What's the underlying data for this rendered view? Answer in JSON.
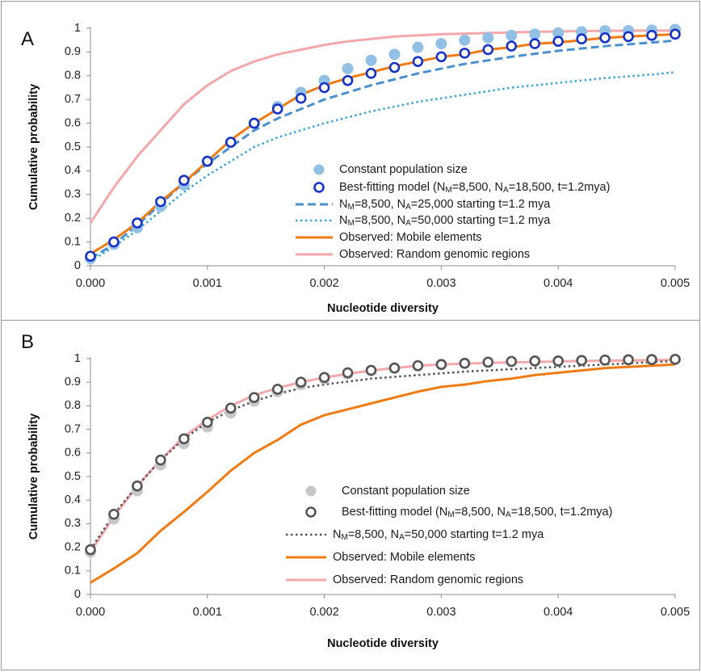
{
  "chart_data": [
    {
      "type": "scatter",
      "panel_label": "A",
      "xlabel": "Nucleotide diversity",
      "ylabel": "Cumulative probability",
      "xlim": [
        0,
        0.005
      ],
      "ylim": [
        0,
        1
      ],
      "x_ticks": [
        "0.000",
        "0.001",
        "0.002",
        "0.003",
        "0.004",
        "0.005"
      ],
      "y_ticks": [
        "0",
        "0.1",
        "0.2",
        "0.3",
        "0.4",
        "0.5",
        "0.6",
        "0.7",
        "0.8",
        "0.9",
        "1"
      ],
      "grid": false,
      "legend_position": "bottom-right",
      "series": [
        {
          "name": "Constant population size",
          "style": "filled-dot",
          "color": "#92bfe4",
          "x": [
            0,
            0.0002,
            0.0004,
            0.0006,
            0.0008,
            0.001,
            0.0012,
            0.0014,
            0.0016,
            0.0018,
            0.002,
            0.0022,
            0.0024,
            0.0026,
            0.0028,
            0.003,
            0.0032,
            0.0034,
            0.0036,
            0.0038,
            0.004,
            0.0042,
            0.0044,
            0.0046,
            0.0048,
            0.005
          ],
          "y": [
            0.03,
            0.09,
            0.16,
            0.25,
            0.34,
            0.44,
            0.52,
            0.6,
            0.67,
            0.73,
            0.78,
            0.83,
            0.865,
            0.89,
            0.92,
            0.935,
            0.95,
            0.96,
            0.97,
            0.975,
            0.98,
            0.985,
            0.99,
            0.99,
            0.992,
            0.995
          ]
        },
        {
          "name": "Best-fitting model (NM=8,500, NA=18,500, t=1.2mya)",
          "style": "open-circle",
          "color": "#1632c8",
          "x": [
            0,
            0.0002,
            0.0004,
            0.0006,
            0.0008,
            0.001,
            0.0012,
            0.0014,
            0.0016,
            0.0018,
            0.002,
            0.0022,
            0.0024,
            0.0026,
            0.0028,
            0.003,
            0.0032,
            0.0034,
            0.0036,
            0.0038,
            0.004,
            0.0042,
            0.0044,
            0.0046,
            0.0048,
            0.005
          ],
          "y": [
            0.04,
            0.1,
            0.18,
            0.27,
            0.36,
            0.44,
            0.52,
            0.6,
            0.66,
            0.705,
            0.75,
            0.78,
            0.81,
            0.835,
            0.86,
            0.88,
            0.895,
            0.91,
            0.925,
            0.935,
            0.945,
            0.955,
            0.96,
            0.965,
            0.97,
            0.975
          ]
        },
        {
          "name": "NM=8,500, NA=25,000 starting t=1.2 mya",
          "style": "dashed-line",
          "color": "#4a90cf",
          "x": [
            0,
            0.0002,
            0.0004,
            0.0006,
            0.0008,
            0.001,
            0.0012,
            0.0014,
            0.0016,
            0.0018,
            0.002,
            0.0024,
            0.0028,
            0.0032,
            0.0036,
            0.004,
            0.0044,
            0.0048,
            0.005
          ],
          "y": [
            0.03,
            0.09,
            0.17,
            0.26,
            0.35,
            0.43,
            0.5,
            0.57,
            0.62,
            0.66,
            0.7,
            0.76,
            0.81,
            0.85,
            0.88,
            0.905,
            0.925,
            0.94,
            0.948
          ]
        },
        {
          "name": "NM=8,500, NA=50,000 starting t=1.2 mya",
          "style": "dotted-line",
          "color": "#3ea7da",
          "x": [
            0,
            0.0002,
            0.0004,
            0.0006,
            0.0008,
            0.001,
            0.0012,
            0.0014,
            0.0016,
            0.0018,
            0.002,
            0.0024,
            0.0028,
            0.0032,
            0.0036,
            0.004,
            0.0044,
            0.0048,
            0.005
          ],
          "y": [
            0.02,
            0.08,
            0.15,
            0.23,
            0.31,
            0.38,
            0.44,
            0.5,
            0.54,
            0.57,
            0.6,
            0.65,
            0.69,
            0.72,
            0.75,
            0.77,
            0.79,
            0.805,
            0.815
          ]
        },
        {
          "name": "Observed: Mobile elements",
          "style": "solid-line",
          "color": "#f07b13",
          "x": [
            0,
            0.0002,
            0.0004,
            0.0006,
            0.0008,
            0.001,
            0.0012,
            0.0014,
            0.0016,
            0.0018,
            0.002,
            0.0022,
            0.0024,
            0.0026,
            0.0028,
            0.003,
            0.0032,
            0.0034,
            0.0036,
            0.0038,
            0.004,
            0.0042,
            0.0044,
            0.0046,
            0.0048,
            0.005
          ],
          "y": [
            0.05,
            0.11,
            0.18,
            0.27,
            0.35,
            0.44,
            0.53,
            0.6,
            0.66,
            0.72,
            0.76,
            0.79,
            0.815,
            0.84,
            0.86,
            0.88,
            0.89,
            0.91,
            0.92,
            0.935,
            0.94,
            0.95,
            0.96,
            0.965,
            0.97,
            0.975
          ]
        },
        {
          "name": "Observed: Random genomic regions",
          "style": "solid-line",
          "color": "#f4a8aa",
          "x": [
            0,
            0.0002,
            0.0004,
            0.0006,
            0.0008,
            0.001,
            0.0012,
            0.0014,
            0.0016,
            0.0018,
            0.002,
            0.0022,
            0.0024,
            0.0026,
            0.0028,
            0.003,
            0.0034,
            0.0038,
            0.0042,
            0.0046,
            0.005
          ],
          "y": [
            0.18,
            0.33,
            0.46,
            0.57,
            0.68,
            0.76,
            0.82,
            0.86,
            0.89,
            0.91,
            0.93,
            0.945,
            0.955,
            0.965,
            0.97,
            0.975,
            0.98,
            0.985,
            0.988,
            0.99,
            0.99
          ]
        }
      ]
    },
    {
      "type": "scatter",
      "panel_label": "B",
      "xlabel": "Nucleotide diversity",
      "ylabel": "Cumulative probability",
      "xlim": [
        0,
        0.005
      ],
      "ylim": [
        0,
        1
      ],
      "x_ticks": [
        "0.000",
        "0.001",
        "0.002",
        "0.003",
        "0.004",
        "0.005"
      ],
      "y_ticks": [
        "0",
        "0.1",
        "0.2",
        "0.3",
        "0.4",
        "0.5",
        "0.6",
        "0.7",
        "0.8",
        "0.9",
        "1"
      ],
      "grid": false,
      "legend_position": "bottom-right",
      "series": [
        {
          "name": "Constant population size",
          "style": "filled-dot",
          "color": "#c7c7c7",
          "x": [
            0,
            0.0002,
            0.0004,
            0.0006,
            0.0008,
            0.001,
            0.0012,
            0.0014,
            0.0016,
            0.0018,
            0.002,
            0.0022,
            0.0024,
            0.0026,
            0.0028,
            0.003,
            0.0032,
            0.0034,
            0.0036,
            0.0038,
            0.004,
            0.0042,
            0.0044,
            0.0046,
            0.0048,
            0.005
          ],
          "y": [
            0.18,
            0.32,
            0.44,
            0.55,
            0.64,
            0.71,
            0.77,
            0.82,
            0.86,
            0.89,
            0.915,
            0.935,
            0.95,
            0.96,
            0.97,
            0.975,
            0.98,
            0.985,
            0.988,
            0.99,
            0.99,
            0.992,
            0.994,
            0.995,
            0.996,
            0.997
          ]
        },
        {
          "name": "Best-fitting model (NM=8,500, NA=18,500, t=1.2mya)",
          "style": "open-circle",
          "color": "#555555",
          "x": [
            0,
            0.0002,
            0.0004,
            0.0006,
            0.0008,
            0.001,
            0.0012,
            0.0014,
            0.0016,
            0.0018,
            0.002,
            0.0022,
            0.0024,
            0.0026,
            0.0028,
            0.003,
            0.0032,
            0.0034,
            0.0036,
            0.0038,
            0.004,
            0.0042,
            0.0044,
            0.0046,
            0.0048,
            0.005
          ],
          "y": [
            0.19,
            0.34,
            0.46,
            0.57,
            0.66,
            0.73,
            0.79,
            0.835,
            0.87,
            0.9,
            0.92,
            0.94,
            0.95,
            0.96,
            0.97,
            0.975,
            0.98,
            0.985,
            0.988,
            0.99,
            0.99,
            0.992,
            0.994,
            0.995,
            0.996,
            0.997
          ]
        },
        {
          "name": "NM=8,500, NA=50,000 starting t=1.2 mya",
          "style": "dotted-line",
          "color": "#555555",
          "x": [
            0,
            0.0002,
            0.0004,
            0.0006,
            0.0008,
            0.001,
            0.0012,
            0.0014,
            0.0016,
            0.0018,
            0.002,
            0.0024,
            0.0028,
            0.0032,
            0.0036,
            0.004,
            0.0044,
            0.0048,
            0.005
          ],
          "y": [
            0.19,
            0.34,
            0.46,
            0.57,
            0.66,
            0.73,
            0.78,
            0.82,
            0.85,
            0.875,
            0.89,
            0.915,
            0.93,
            0.945,
            0.955,
            0.965,
            0.975,
            0.985,
            0.99
          ]
        },
        {
          "name": "Observed: Mobile elements",
          "style": "solid-line",
          "color": "#f07b13",
          "x": [
            0,
            0.0002,
            0.0004,
            0.0006,
            0.0008,
            0.001,
            0.0012,
            0.0014,
            0.0016,
            0.0018,
            0.002,
            0.0022,
            0.0024,
            0.0026,
            0.0028,
            0.003,
            0.0032,
            0.0034,
            0.0036,
            0.0038,
            0.004,
            0.0042,
            0.0044,
            0.0046,
            0.0048,
            0.005
          ],
          "y": [
            0.05,
            0.11,
            0.175,
            0.27,
            0.35,
            0.435,
            0.525,
            0.6,
            0.655,
            0.72,
            0.76,
            0.785,
            0.81,
            0.835,
            0.86,
            0.88,
            0.89,
            0.905,
            0.915,
            0.93,
            0.94,
            0.95,
            0.96,
            0.965,
            0.97,
            0.975
          ]
        },
        {
          "name": "Observed: Random genomic regions",
          "style": "solid-line",
          "color": "#f4a8aa",
          "x": [
            0,
            0.0002,
            0.0004,
            0.0006,
            0.0008,
            0.001,
            0.0012,
            0.0014,
            0.0016,
            0.0018,
            0.002,
            0.0022,
            0.0024,
            0.0026,
            0.0028,
            0.003,
            0.0034,
            0.0038,
            0.0042,
            0.0046,
            0.005
          ],
          "y": [
            0.18,
            0.33,
            0.46,
            0.57,
            0.67,
            0.74,
            0.8,
            0.845,
            0.875,
            0.9,
            0.92,
            0.935,
            0.95,
            0.96,
            0.97,
            0.975,
            0.982,
            0.986,
            0.99,
            0.992,
            0.995
          ]
        }
      ]
    }
  ]
}
